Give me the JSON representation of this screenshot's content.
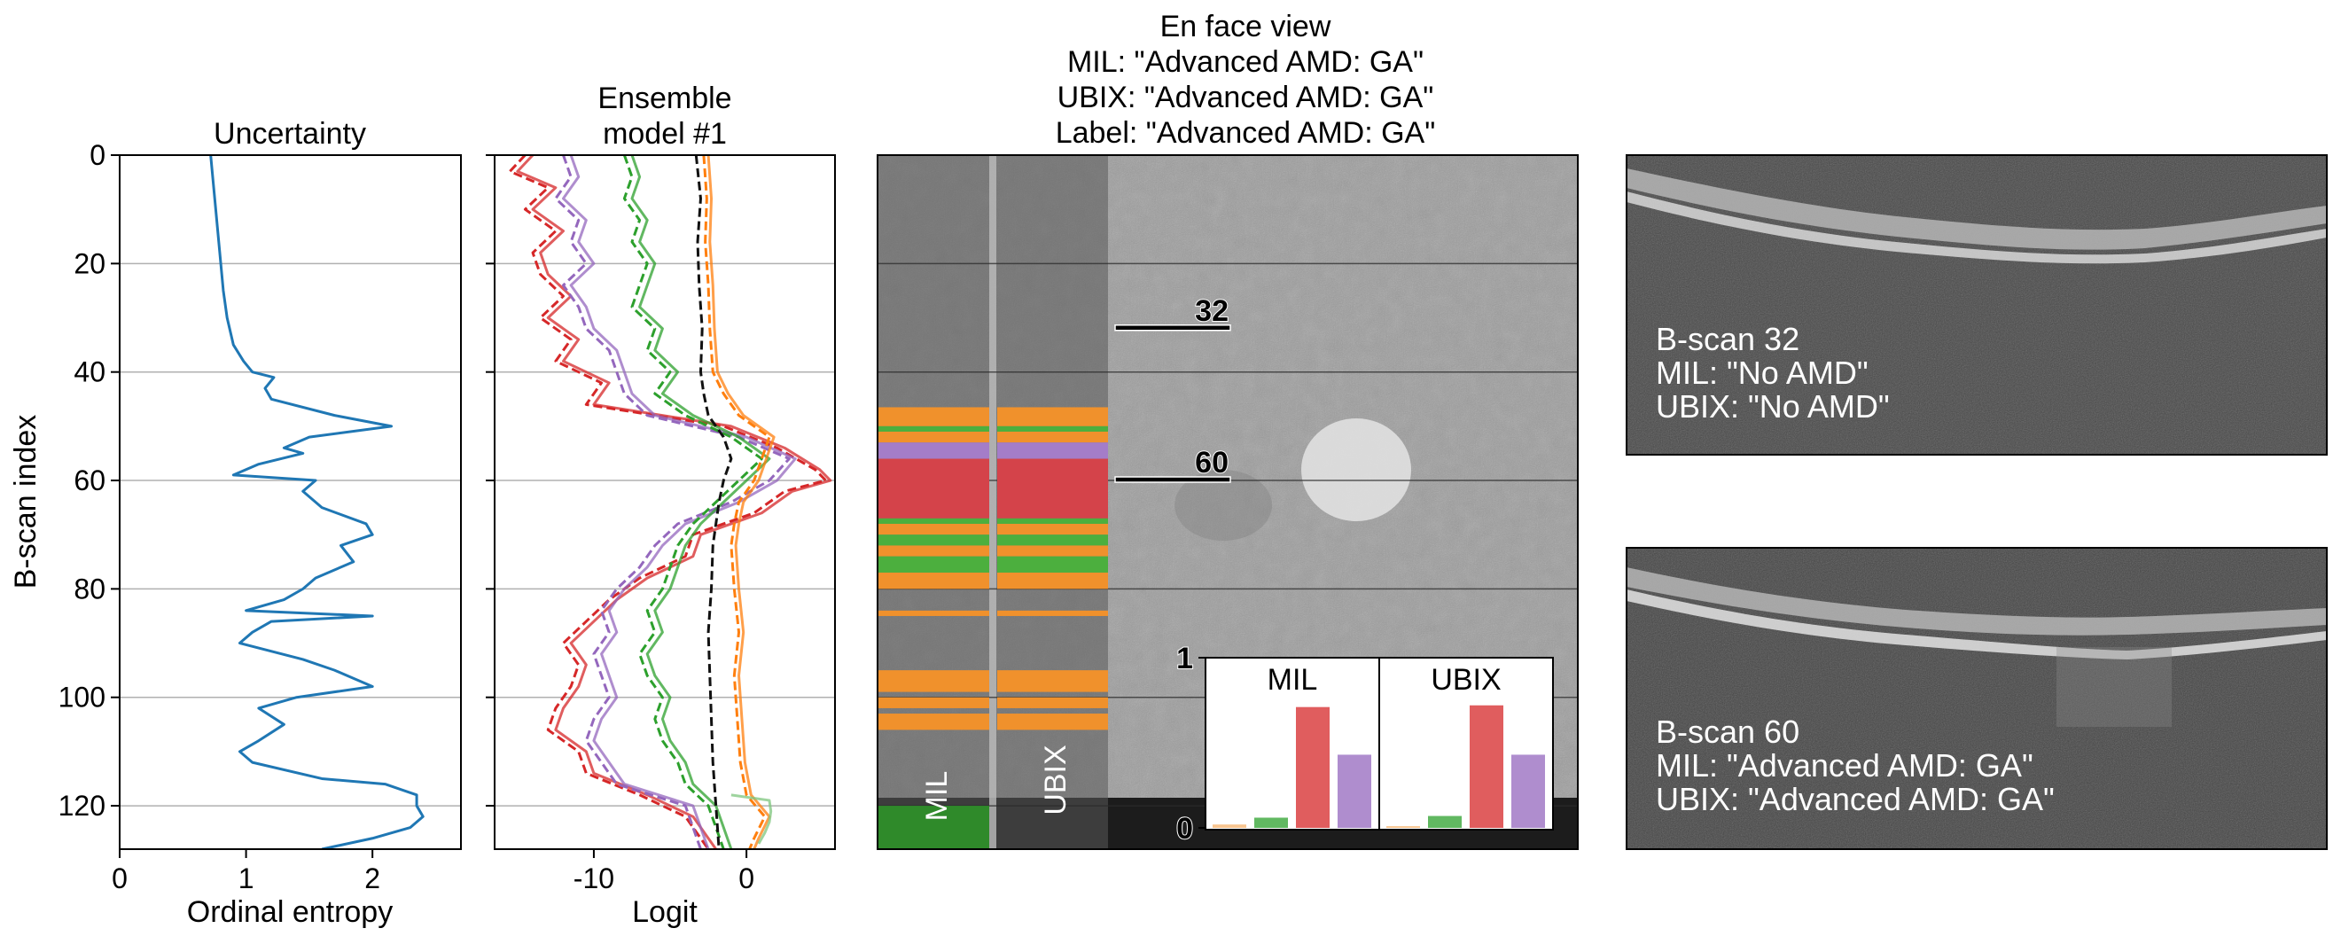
{
  "figure": {
    "enface_title_lines": [
      "En face view",
      "MIL: \"Advanced AMD: GA\"",
      "UBIX: \"Advanced AMD: GA\"",
      "Label: \"Advanced AMD: GA\""
    ],
    "colors": {
      "none": "#f6b26b",
      "early": "#2ca02c",
      "ga": "#d62728",
      "cnv": "#9467bd",
      "ga_light": "#e06060",
      "cnv_light": "#b08ad6",
      "orange": "#ff7f0e",
      "black": "#111111"
    }
  },
  "chart_data": [
    {
      "type": "line",
      "id": "uncertainty",
      "title": "Uncertainty",
      "xlabel": "Ordinal entropy",
      "ylabel": "B-scan index",
      "xlim": [
        0,
        2.7
      ],
      "ylim": [
        128,
        0
      ],
      "xticks": [
        "0",
        "1",
        "2"
      ],
      "xtick_values": [
        0,
        1,
        2
      ],
      "yticks": [
        "0",
        "20",
        "40",
        "60",
        "80",
        "100",
        "120"
      ],
      "ytick_values": [
        0,
        20,
        40,
        60,
        80,
        100,
        120
      ],
      "grid": "horizontal",
      "series": [
        {
          "color": "#1f77b4",
          "y": [
            0,
            5,
            10,
            15,
            20,
            25,
            30,
            35,
            38,
            40,
            41,
            43,
            45,
            48,
            50,
            52,
            54,
            55,
            57,
            59,
            60,
            62,
            65,
            68,
            70,
            72,
            75,
            78,
            80,
            82,
            84,
            85,
            86,
            88,
            90,
            93,
            95,
            97,
            98,
            100,
            102,
            105,
            108,
            110,
            112,
            115,
            116,
            118,
            120,
            122,
            124,
            126,
            128
          ],
          "x": [
            0.72,
            0.74,
            0.76,
            0.78,
            0.8,
            0.82,
            0.85,
            0.9,
            0.98,
            1.05,
            1.22,
            1.15,
            1.2,
            1.7,
            2.15,
            1.5,
            1.3,
            1.45,
            1.1,
            0.9,
            1.55,
            1.45,
            1.6,
            1.95,
            2.0,
            1.75,
            1.85,
            1.55,
            1.45,
            1.3,
            1.0,
            2.0,
            1.2,
            1.05,
            0.95,
            1.45,
            1.7,
            1.9,
            2.0,
            1.4,
            1.1,
            1.3,
            1.1,
            0.95,
            1.05,
            1.6,
            2.1,
            2.35,
            2.35,
            2.4,
            2.3,
            2.0,
            1.6
          ]
        }
      ]
    },
    {
      "type": "line",
      "id": "ensemble",
      "title": "Ensemble\nmodel #1",
      "xlabel": "Logit",
      "xlim": [
        -16.5,
        5.8
      ],
      "ylim": [
        128,
        0
      ],
      "xticks": [
        "-10",
        "0"
      ],
      "xtick_values": [
        -10,
        0
      ],
      "grid": "horizontal",
      "series": [
        {
          "color": "#d62728",
          "dashed": true,
          "y": [
            0,
            3,
            6,
            10,
            14,
            18,
            22,
            26,
            30,
            34,
            38,
            42,
            46,
            50,
            54,
            58,
            60,
            62,
            66,
            70,
            74,
            78,
            82,
            86,
            90,
            94,
            98,
            102,
            106,
            110,
            114,
            118,
            122,
            126,
            128
          ],
          "x": [
            -14.5,
            -15.5,
            -13.0,
            -14.5,
            -12.5,
            -14.0,
            -13.5,
            -12.0,
            -13.5,
            -11.5,
            -12.5,
            -9.5,
            -10.5,
            -1.5,
            2.0,
            4.5,
            5.2,
            2.5,
            0.5,
            -3.5,
            -4.0,
            -7.0,
            -9.0,
            -10.5,
            -12.0,
            -11.0,
            -11.5,
            -12.5,
            -13.0,
            -11.0,
            -10.5,
            -7.0,
            -4.0,
            -3.0,
            -2.5
          ]
        },
        {
          "color": "#d62728",
          "y": [
            0,
            3,
            6,
            10,
            14,
            18,
            22,
            26,
            30,
            34,
            38,
            42,
            46,
            50,
            54,
            58,
            60,
            62,
            66,
            70,
            74,
            78,
            82,
            86,
            90,
            94,
            98,
            102,
            106,
            110,
            114,
            118,
            122,
            126,
            128
          ],
          "x": [
            -14.0,
            -15.0,
            -12.5,
            -14.0,
            -12.0,
            -13.5,
            -13.0,
            -11.5,
            -13.0,
            -11.0,
            -12.0,
            -9.0,
            -10.0,
            -1.0,
            2.5,
            4.8,
            5.5,
            3.0,
            1.0,
            -3.0,
            -3.5,
            -6.5,
            -8.5,
            -10.0,
            -11.5,
            -10.5,
            -11.0,
            -12.0,
            -12.5,
            -10.5,
            -10.0,
            -6.5,
            -3.5,
            -2.5,
            -2.0
          ]
        },
        {
          "color": "#9467bd",
          "dashed": true,
          "y": [
            0,
            4,
            8,
            12,
            16,
            20,
            24,
            28,
            32,
            36,
            40,
            44,
            48,
            52,
            56,
            60,
            64,
            68,
            72,
            76,
            80,
            84,
            88,
            92,
            96,
            100,
            104,
            108,
            112,
            116,
            120,
            124,
            128
          ],
          "x": [
            -12.0,
            -11.5,
            -12.5,
            -11.0,
            -11.5,
            -10.5,
            -12.0,
            -11.0,
            -10.5,
            -9.0,
            -8.5,
            -8.0,
            -6.5,
            -0.5,
            2.8,
            1.5,
            -1.0,
            -4.5,
            -6.0,
            -7.0,
            -8.5,
            -9.5,
            -9.0,
            -10.0,
            -9.5,
            -9.0,
            -10.0,
            -10.5,
            -9.5,
            -8.5,
            -4.0,
            -3.5,
            -3.0
          ]
        },
        {
          "color": "#9467bd",
          "y": [
            0,
            4,
            8,
            12,
            16,
            20,
            24,
            28,
            32,
            36,
            40,
            44,
            48,
            52,
            56,
            60,
            64,
            68,
            72,
            76,
            80,
            84,
            88,
            92,
            96,
            100,
            104,
            108,
            112,
            116,
            120,
            124,
            128
          ],
          "x": [
            -11.5,
            -11.0,
            -12.0,
            -10.5,
            -11.0,
            -10.0,
            -11.5,
            -10.5,
            -10.0,
            -8.5,
            -8.0,
            -7.5,
            -6.0,
            0.0,
            3.2,
            2.0,
            -0.5,
            -4.0,
            -5.5,
            -6.5,
            -8.0,
            -9.0,
            -8.5,
            -9.5,
            -9.0,
            -8.5,
            -9.5,
            -10.0,
            -9.0,
            -8.0,
            -3.5,
            -3.0,
            -2.5
          ]
        },
        {
          "color": "#2ca02c",
          "dashed": true,
          "y": [
            0,
            4,
            8,
            12,
            16,
            20,
            24,
            28,
            32,
            36,
            40,
            44,
            48,
            52,
            56,
            60,
            64,
            68,
            72,
            76,
            80,
            84,
            88,
            92,
            96,
            100,
            104,
            108,
            112,
            116,
            120,
            124,
            128
          ],
          "x": [
            -8.0,
            -7.5,
            -8.0,
            -7.0,
            -7.5,
            -6.5,
            -7.0,
            -7.5,
            -6.0,
            -6.5,
            -5.0,
            -6.0,
            -4.0,
            -1.0,
            1.0,
            -0.5,
            -2.0,
            -3.5,
            -4.5,
            -5.0,
            -5.5,
            -6.5,
            -6.0,
            -7.0,
            -6.5,
            -5.5,
            -6.0,
            -5.5,
            -4.5,
            -4.0,
            -2.5,
            -2.0,
            -1.5
          ]
        },
        {
          "color": "#2ca02c",
          "y": [
            0,
            4,
            8,
            12,
            16,
            20,
            24,
            28,
            32,
            36,
            40,
            44,
            48,
            52,
            56,
            60,
            64,
            68,
            72,
            76,
            80,
            84,
            88,
            92,
            96,
            100,
            104,
            108,
            112,
            116,
            120,
            124,
            128
          ],
          "x": [
            -7.5,
            -7.0,
            -7.5,
            -6.5,
            -7.0,
            -6.0,
            -6.5,
            -7.0,
            -5.5,
            -6.0,
            -4.5,
            -5.5,
            -3.5,
            -0.5,
            1.5,
            0.0,
            -1.5,
            -3.0,
            -4.0,
            -4.5,
            -5.0,
            -6.0,
            -5.5,
            -6.5,
            -6.0,
            -5.0,
            -5.5,
            -5.0,
            -4.0,
            -3.5,
            -2.0,
            -1.5,
            -1.0
          ]
        },
        {
          "color": "#111111",
          "dashed": true,
          "y": [
            0,
            8,
            16,
            24,
            32,
            40,
            44,
            48,
            52,
            56,
            60,
            64,
            68,
            72,
            80,
            88,
            96,
            104,
            112,
            120,
            128
          ],
          "x": [
            -3.3,
            -3.0,
            -3.2,
            -3.1,
            -2.9,
            -3.0,
            -2.8,
            -2.5,
            -1.5,
            -1.0,
            -1.5,
            -1.8,
            -2.0,
            -2.2,
            -2.3,
            -2.5,
            -2.4,
            -2.3,
            -2.2,
            -2.0,
            -1.8
          ]
        },
        {
          "color": "#ff7f0e",
          "dashed": true,
          "y": [
            0,
            8,
            16,
            24,
            32,
            40,
            44,
            48,
            52,
            56,
            60,
            64,
            68,
            72,
            80,
            88,
            96,
            104,
            112,
            118,
            122,
            126,
            128
          ],
          "x": [
            -2.8,
            -2.6,
            -2.7,
            -2.5,
            -2.4,
            -2.2,
            -1.5,
            -0.5,
            1.5,
            1.0,
            0.5,
            -0.5,
            -0.8,
            -1.0,
            -0.8,
            -0.5,
            -0.8,
            -0.6,
            -0.4,
            0.0,
            1.2,
            0.5,
            0.2
          ]
        },
        {
          "color": "#ff7f0e",
          "y": [
            0,
            8,
            16,
            24,
            32,
            40,
            44,
            48,
            52,
            56,
            60,
            64,
            68,
            72,
            80,
            88,
            96,
            104,
            112,
            118,
            122,
            126,
            128
          ],
          "x": [
            -2.5,
            -2.3,
            -2.4,
            -2.2,
            -2.1,
            -1.9,
            -1.2,
            -0.2,
            1.8,
            1.3,
            0.8,
            -0.2,
            -0.5,
            -0.7,
            -0.5,
            -0.2,
            -0.5,
            -0.3,
            -0.1,
            0.3,
            1.5,
            0.8,
            0.5
          ]
        },
        {
          "color": "#7dc67d",
          "y": [
            118,
            119,
            121,
            123,
            125,
            127
          ],
          "x": [
            -1.0,
            1.5,
            1.6,
            1.5,
            1.2,
            0.8
          ]
        }
      ]
    },
    {
      "type": "heatmap",
      "id": "enface",
      "ylim": [
        128,
        0
      ],
      "column_labels": [
        "MIL",
        "UBIX"
      ],
      "markers": [
        {
          "bscan": 32,
          "label": "32"
        },
        {
          "bscan": 60,
          "label": "60"
        }
      ],
      "bands": [
        {
          "y0": 46.5,
          "y1": 50,
          "col": "orange"
        },
        {
          "y0": 50,
          "y1": 51,
          "col": "green"
        },
        {
          "y0": 51,
          "y1": 53,
          "col": "orange"
        },
        {
          "y0": 53,
          "y1": 56,
          "col": "purple"
        },
        {
          "y0": 56,
          "y1": 67,
          "col": "red"
        },
        {
          "y0": 67,
          "y1": 68,
          "col": "green"
        },
        {
          "y0": 68,
          "y1": 70,
          "col": "orange"
        },
        {
          "y0": 70,
          "y1": 72,
          "col": "green"
        },
        {
          "y0": 72,
          "y1": 74,
          "col": "orange"
        },
        {
          "y0": 74,
          "y1": 77,
          "col": "green"
        },
        {
          "y0": 77,
          "y1": 80,
          "col": "orange"
        },
        {
          "y0": 84,
          "y1": 85,
          "col": "orange"
        },
        {
          "y0": 95,
          "y1": 99,
          "col": "orange"
        },
        {
          "y0": 100,
          "y1": 102,
          "col": "orange"
        },
        {
          "y0": 103,
          "y1": 106,
          "col": "orange"
        },
        {
          "y0": 120,
          "y1": 128,
          "col": "darkgreen",
          "mil_only": true
        }
      ]
    },
    {
      "type": "bar",
      "id": "inset",
      "panels": [
        "MIL",
        "UBIX"
      ],
      "ylim": [
        0,
        1
      ],
      "yticks": [
        "0",
        "1"
      ],
      "ytick_values": [
        0,
        1
      ],
      "series": [
        {
          "panel": "MIL",
          "values": [
            0.02,
            0.06,
            0.71,
            0.43
          ]
        },
        {
          "panel": "UBIX",
          "values": [
            0.01,
            0.07,
            0.72,
            0.43
          ]
        }
      ]
    }
  ],
  "bscan_overlays": [
    {
      "lines": [
        "B-scan 32",
        "MIL: \"No AMD\"",
        "UBIX: \"No AMD\""
      ]
    },
    {
      "lines": [
        "B-scan 60",
        "MIL: \"Advanced AMD: GA\"",
        "UBIX: \"Advanced AMD: GA\""
      ]
    }
  ]
}
